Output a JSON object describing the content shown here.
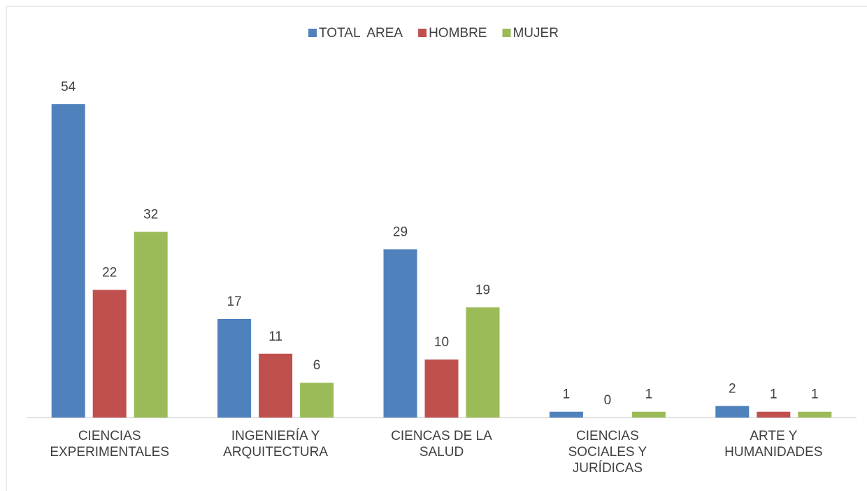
{
  "chart_data": {
    "type": "bar",
    "categories": [
      "CIENCIAS EXPERIMENTALES",
      "INGENIERÍA Y ARQUITECTURA",
      "CIENCAS DE LA SALUD",
      "CIENCIAS SOCIALES Y JURÍDICAS",
      "ARTE Y HUMANIDADES"
    ],
    "series": [
      {
        "name": "TOTAL  AREA",
        "color": "#4f81bd",
        "values": [
          54,
          17,
          29,
          1,
          2
        ]
      },
      {
        "name": "HOMBRE",
        "color": "#c0504d",
        "values": [
          22,
          11,
          10,
          0,
          1
        ]
      },
      {
        "name": "MUJER",
        "color": "#9bbb59",
        "values": [
          32,
          6,
          19,
          1,
          1
        ]
      }
    ],
    "legend": "top"
  }
}
